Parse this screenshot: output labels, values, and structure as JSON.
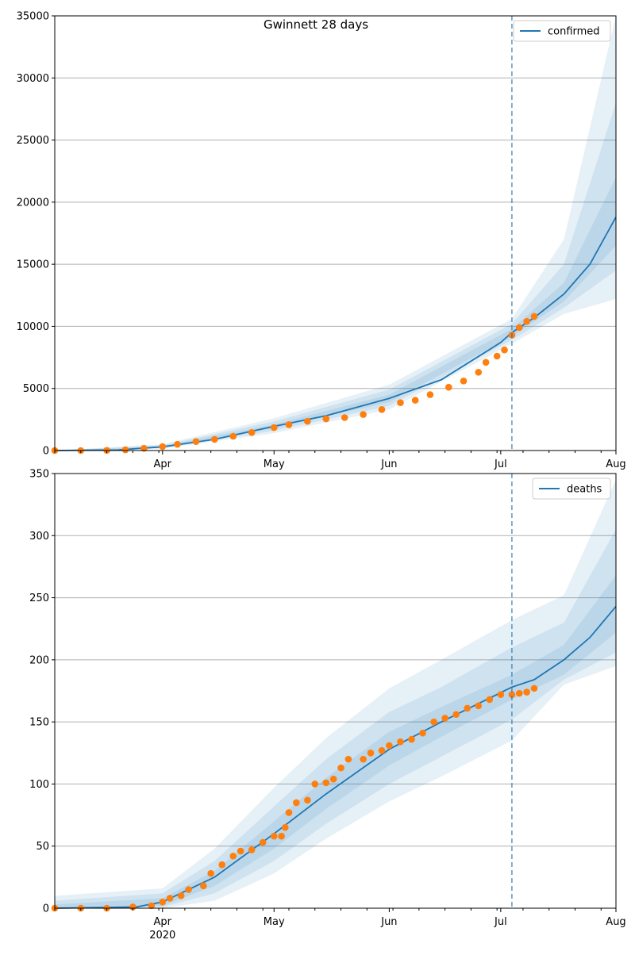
{
  "title": "Gwinnett 28 days",
  "colors": {
    "line": "#1f77b4",
    "band": "#1f77b4",
    "observed": "#ff7f0e",
    "forecast_line": "#1f77b4",
    "grid": "#b0b0b0"
  },
  "chart_data": [
    {
      "type": "line",
      "legend": "confirmed",
      "legend_position": "top-right",
      "grid": "horizontal",
      "x_range": [
        "2020-03-03",
        "2020-08-01"
      ],
      "x_tick_labels": [
        "Apr",
        "May",
        "Jun",
        "Jul",
        "Aug"
      ],
      "x_tick_dates": [
        "2020-04-01",
        "2020-05-01",
        "2020-06-01",
        "2020-07-01",
        "2020-08-01"
      ],
      "x_year_label": "2020",
      "forecast_start": "2020-07-04",
      "ylim": [
        0,
        35000
      ],
      "y_ticks": [
        0,
        5000,
        10000,
        15000,
        20000,
        25000,
        30000,
        35000
      ],
      "median": [
        [
          "2020-03-03",
          0
        ],
        [
          "2020-03-20",
          50
        ],
        [
          "2020-04-01",
          300
        ],
        [
          "2020-04-15",
          900
        ],
        [
          "2020-05-01",
          1950
        ],
        [
          "2020-05-15",
          2800
        ],
        [
          "2020-06-01",
          4200
        ],
        [
          "2020-06-15",
          5700
        ],
        [
          "2020-07-01",
          8700
        ],
        [
          "2020-07-04",
          9500
        ],
        [
          "2020-07-10",
          10700
        ],
        [
          "2020-07-18",
          12600
        ],
        [
          "2020-07-25",
          15000
        ],
        [
          "2020-08-01",
          18800
        ]
      ],
      "bands": [
        {
          "level": "inner",
          "lower": [
            [
              "2020-03-03",
              0
            ],
            [
              "2020-04-01",
              250
            ],
            [
              "2020-05-01",
              1800
            ],
            [
              "2020-06-01",
              3900
            ],
            [
              "2020-07-04",
              9200
            ],
            [
              "2020-07-18",
              12000
            ],
            [
              "2020-08-01",
              16500
            ]
          ],
          "upper": [
            [
              "2020-03-03",
              0
            ],
            [
              "2020-04-01",
              350
            ],
            [
              "2020-05-01",
              2100
            ],
            [
              "2020-06-01",
              4500
            ],
            [
              "2020-07-04",
              9800
            ],
            [
              "2020-07-18",
              13500
            ],
            [
              "2020-08-01",
              22000
            ]
          ]
        },
        {
          "level": "middle",
          "lower": [
            [
              "2020-03-03",
              0
            ],
            [
              "2020-04-01",
              200
            ],
            [
              "2020-05-01",
              1600
            ],
            [
              "2020-06-01",
              3600
            ],
            [
              "2020-07-04",
              8900
            ],
            [
              "2020-07-18",
              11500
            ],
            [
              "2020-08-01",
              14500
            ]
          ],
          "upper": [
            [
              "2020-03-03",
              0
            ],
            [
              "2020-04-01",
              420
            ],
            [
              "2020-05-01",
              2350
            ],
            [
              "2020-06-01",
              4900
            ],
            [
              "2020-07-04",
              10200
            ],
            [
              "2020-07-18",
              15000
            ],
            [
              "2020-08-01",
              28000
            ]
          ]
        },
        {
          "level": "outer",
          "lower": [
            [
              "2020-03-03",
              0
            ],
            [
              "2020-04-01",
              150
            ],
            [
              "2020-05-01",
              1400
            ],
            [
              "2020-06-01",
              3300
            ],
            [
              "2020-07-04",
              8600
            ],
            [
              "2020-07-18",
              11000
            ],
            [
              "2020-08-01",
              12200
            ]
          ],
          "upper": [
            [
              "2020-03-03",
              0
            ],
            [
              "2020-04-01",
              500
            ],
            [
              "2020-05-01",
              2600
            ],
            [
              "2020-06-01",
              5300
            ],
            [
              "2020-07-04",
              10600
            ],
            [
              "2020-07-18",
              17000
            ],
            [
              "2020-08-01",
              35000
            ]
          ]
        }
      ],
      "observed": [
        [
          "2020-03-03",
          0
        ],
        [
          "2020-03-10",
          0
        ],
        [
          "2020-03-17",
          10
        ],
        [
          "2020-03-22",
          60
        ],
        [
          "2020-03-27",
          180
        ],
        [
          "2020-04-01",
          320
        ],
        [
          "2020-04-05",
          500
        ],
        [
          "2020-04-10",
          720
        ],
        [
          "2020-04-15",
          900
        ],
        [
          "2020-04-20",
          1150
        ],
        [
          "2020-04-25",
          1450
        ],
        [
          "2020-05-01",
          1850
        ],
        [
          "2020-05-05",
          2080
        ],
        [
          "2020-05-10",
          2350
        ],
        [
          "2020-05-15",
          2550
        ],
        [
          "2020-05-20",
          2650
        ],
        [
          "2020-05-25",
          2900
        ],
        [
          "2020-05-30",
          3300
        ],
        [
          "2020-06-04",
          3850
        ],
        [
          "2020-06-08",
          4050
        ],
        [
          "2020-06-12",
          4500
        ],
        [
          "2020-06-17",
          5100
        ],
        [
          "2020-06-21",
          5600
        ],
        [
          "2020-06-25",
          6300
        ],
        [
          "2020-06-27",
          7100
        ],
        [
          "2020-06-30",
          7600
        ],
        [
          "2020-07-02",
          8100
        ],
        [
          "2020-07-04",
          9300
        ],
        [
          "2020-07-06",
          9900
        ],
        [
          "2020-07-08",
          10400
        ],
        [
          "2020-07-10",
          10800
        ]
      ]
    },
    {
      "type": "line",
      "legend": "deaths",
      "legend_position": "top-right",
      "grid": "horizontal",
      "x_range": [
        "2020-03-03",
        "2020-08-01"
      ],
      "x_tick_labels": [
        "Apr",
        "May",
        "Jun",
        "Jul",
        "Aug"
      ],
      "x_tick_dates": [
        "2020-04-01",
        "2020-05-01",
        "2020-06-01",
        "2020-07-01",
        "2020-08-01"
      ],
      "x_year_label": "2020",
      "forecast_start": "2020-07-04",
      "ylim": [
        0,
        350
      ],
      "y_ticks": [
        0,
        50,
        100,
        150,
        200,
        250,
        300,
        350
      ],
      "median": [
        [
          "2020-03-03",
          0
        ],
        [
          "2020-03-25",
          1
        ],
        [
          "2020-04-01",
          5
        ],
        [
          "2020-04-15",
          25
        ],
        [
          "2020-05-01",
          60
        ],
        [
          "2020-05-15",
          92
        ],
        [
          "2020-06-01",
          128
        ],
        [
          "2020-06-15",
          150
        ],
        [
          "2020-07-04",
          178
        ],
        [
          "2020-07-10",
          184
        ],
        [
          "2020-07-18",
          200
        ],
        [
          "2020-07-25",
          218
        ],
        [
          "2020-08-01",
          243
        ]
      ],
      "bands": [
        {
          "level": "inner",
          "lower": [
            [
              "2020-03-03",
              0
            ],
            [
              "2020-04-01",
              2
            ],
            [
              "2020-04-15",
              18
            ],
            [
              "2020-05-01",
              48
            ],
            [
              "2020-05-15",
              80
            ],
            [
              "2020-06-01",
              115
            ],
            [
              "2020-06-15",
              138
            ],
            [
              "2020-07-04",
              168
            ],
            [
              "2020-07-18",
              188
            ],
            [
              "2020-08-01",
              222
            ]
          ],
          "upper": [
            [
              "2020-03-03",
              3
            ],
            [
              "2020-04-01",
              8
            ],
            [
              "2020-04-15",
              30
            ],
            [
              "2020-05-01",
              70
            ],
            [
              "2020-05-15",
              105
            ],
            [
              "2020-06-01",
              142
            ],
            [
              "2020-06-15",
              162
            ],
            [
              "2020-07-04",
              188
            ],
            [
              "2020-07-18",
              212
            ],
            [
              "2020-08-01",
              268
            ]
          ]
        },
        {
          "level": "middle",
          "lower": [
            [
              "2020-03-03",
              0
            ],
            [
              "2020-04-01",
              1
            ],
            [
              "2020-04-15",
              12
            ],
            [
              "2020-05-01",
              38
            ],
            [
              "2020-05-15",
              68
            ],
            [
              "2020-06-01",
              100
            ],
            [
              "2020-06-15",
              122
            ],
            [
              "2020-07-04",
              152
            ],
            [
              "2020-07-18",
              184
            ],
            [
              "2020-08-01",
              206
            ]
          ],
          "upper": [
            [
              "2020-03-03",
              6
            ],
            [
              "2020-04-01",
              12
            ],
            [
              "2020-04-15",
              38
            ],
            [
              "2020-05-01",
              82
            ],
            [
              "2020-05-15",
              120
            ],
            [
              "2020-06-01",
              158
            ],
            [
              "2020-06-15",
              178
            ],
            [
              "2020-07-04",
              210
            ],
            [
              "2020-07-18",
              230
            ],
            [
              "2020-08-01",
              305
            ]
          ]
        },
        {
          "level": "outer",
          "lower": [
            [
              "2020-03-03",
              0
            ],
            [
              "2020-04-01",
              0
            ],
            [
              "2020-04-15",
              6
            ],
            [
              "2020-05-01",
              28
            ],
            [
              "2020-05-15",
              56
            ],
            [
              "2020-06-01",
              86
            ],
            [
              "2020-06-15",
              106
            ],
            [
              "2020-07-04",
              135
            ],
            [
              "2020-07-18",
              180
            ],
            [
              "2020-08-01",
              195
            ]
          ],
          "upper": [
            [
              "2020-03-03",
              10
            ],
            [
              "2020-04-01",
              16
            ],
            [
              "2020-04-15",
              48
            ],
            [
              "2020-05-01",
              97
            ],
            [
              "2020-05-15",
              137
            ],
            [
              "2020-06-01",
              177
            ],
            [
              "2020-06-15",
              200
            ],
            [
              "2020-07-04",
              232
            ],
            [
              "2020-07-18",
              252
            ],
            [
              "2020-08-01",
              345
            ]
          ]
        }
      ],
      "observed": [
        [
          "2020-03-03",
          0
        ],
        [
          "2020-03-10",
          0
        ],
        [
          "2020-03-17",
          0
        ],
        [
          "2020-03-24",
          1
        ],
        [
          "2020-03-29",
          2
        ],
        [
          "2020-04-01",
          5
        ],
        [
          "2020-04-03",
          8
        ],
        [
          "2020-04-06",
          10
        ],
        [
          "2020-04-08",
          15
        ],
        [
          "2020-04-12",
          18
        ],
        [
          "2020-04-14",
          28
        ],
        [
          "2020-04-17",
          35
        ],
        [
          "2020-04-20",
          42
        ],
        [
          "2020-04-22",
          46
        ],
        [
          "2020-04-25",
          47
        ],
        [
          "2020-04-28",
          53
        ],
        [
          "2020-05-01",
          58
        ],
        [
          "2020-05-03",
          58
        ],
        [
          "2020-05-04",
          65
        ],
        [
          "2020-05-05",
          77
        ],
        [
          "2020-05-07",
          85
        ],
        [
          "2020-05-10",
          87
        ],
        [
          "2020-05-12",
          100
        ],
        [
          "2020-05-15",
          101
        ],
        [
          "2020-05-17",
          104
        ],
        [
          "2020-05-19",
          113
        ],
        [
          "2020-05-21",
          120
        ],
        [
          "2020-05-25",
          120
        ],
        [
          "2020-05-27",
          125
        ],
        [
          "2020-05-30",
          127
        ],
        [
          "2020-06-01",
          131
        ],
        [
          "2020-06-04",
          134
        ],
        [
          "2020-06-07",
          136
        ],
        [
          "2020-06-10",
          141
        ],
        [
          "2020-06-13",
          150
        ],
        [
          "2020-06-16",
          153
        ],
        [
          "2020-06-19",
          156
        ],
        [
          "2020-06-22",
          161
        ],
        [
          "2020-06-25",
          163
        ],
        [
          "2020-06-28",
          168
        ],
        [
          "2020-07-01",
          172
        ],
        [
          "2020-07-04",
          172
        ],
        [
          "2020-07-06",
          173
        ],
        [
          "2020-07-08",
          174
        ],
        [
          "2020-07-10",
          177
        ]
      ]
    }
  ]
}
